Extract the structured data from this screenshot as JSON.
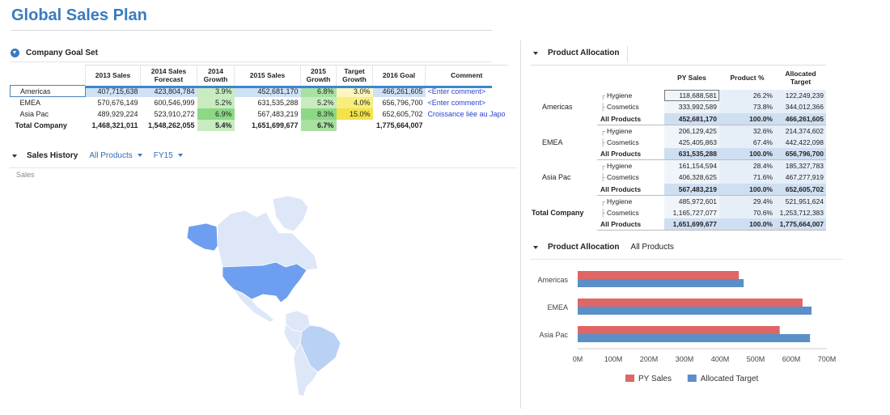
{
  "title": "Global Sales Plan",
  "goal_section": {
    "title": "Company Goal Set"
  },
  "goal_table": {
    "headers": [
      "",
      "2013 Sales",
      "2014 Sales Forecast",
      "2014 Growth",
      "2015 Sales",
      "2015 Growth",
      "Target Growth",
      "2016 Goal",
      "Comment"
    ],
    "rows": [
      {
        "label": "Americas",
        "s2013": "407,715,638",
        "f2014": "423,804,784",
        "g2014": "3.9%",
        "s2015": "452,681,170",
        "g2015": "6.8%",
        "tg": "3.0%",
        "goal2016": "466,261,605",
        "comment": "<Enter comment>"
      },
      {
        "label": "EMEA",
        "s2013": "570,676,149",
        "f2014": "600,546,999",
        "g2014": "5.2%",
        "s2015": "631,535,288",
        "g2015": "5.2%",
        "tg": "4.0%",
        "goal2016": "656,796,700",
        "comment": "<Enter comment>"
      },
      {
        "label": "Asia Pac",
        "s2013": "489,929,224",
        "f2014": "523,910,272",
        "g2014": "6.9%",
        "s2015": "567,483,219",
        "g2015": "8.3%",
        "tg": "15.0%",
        "goal2016": "652,605,702",
        "comment": "Croissance liée au Japo"
      },
      {
        "label": "Total Company",
        "s2013": "1,468,321,011",
        "f2014": "1,548,262,055",
        "g2014": "5.4%",
        "s2015": "1,651,699,677",
        "g2015": "6.7%",
        "tg": "",
        "goal2016": "1,775,664,007",
        "comment": ""
      }
    ]
  },
  "sales_history": {
    "title": "Sales History",
    "filter_product": "All Products",
    "filter_period": "FY15",
    "measure_label": "Sales"
  },
  "map": {
    "colors": {
      "dark": "#6d9eef",
      "medium": "#b9d1f5",
      "light": "#dde7f7"
    }
  },
  "alloc_section": {
    "title": "Product Allocation"
  },
  "alloc_table": {
    "headers": [
      "",
      "",
      "PY Sales",
      "Product %",
      "Allocated Target"
    ],
    "groups": [
      {
        "region": "Americas",
        "rows": [
          {
            "product": "Hygiene",
            "py": "118,688,581",
            "pct": "26.2%",
            "target": "122,249,239"
          },
          {
            "product": "Cosmetics",
            "py": "333,992,589",
            "pct": "73.8%",
            "target": "344,012,366"
          },
          {
            "product": "All Products",
            "py": "452,681,170",
            "pct": "100.0%",
            "target": "466,261,605"
          }
        ]
      },
      {
        "region": "EMEA",
        "rows": [
          {
            "product": "Hygiene",
            "py": "206,129,425",
            "pct": "32.6%",
            "target": "214,374,602"
          },
          {
            "product": "Cosmetics",
            "py": "425,405,863",
            "pct": "67.4%",
            "target": "442,422,098"
          },
          {
            "product": "All Products",
            "py": "631,535,288",
            "pct": "100.0%",
            "target": "656,796,700"
          }
        ]
      },
      {
        "region": "Asia Pac",
        "rows": [
          {
            "product": "Hygiene",
            "py": "161,154,594",
            "pct": "28.4%",
            "target": "185,327,783"
          },
          {
            "product": "Cosmetics",
            "py": "406,328,625",
            "pct": "71.6%",
            "target": "467,277,919"
          },
          {
            "product": "All Products",
            "py": "567,483,219",
            "pct": "100.0%",
            "target": "652,605,702"
          }
        ]
      },
      {
        "region": "Total Company",
        "rows": [
          {
            "product": "Hygiene",
            "py": "485,972,601",
            "pct": "29.4%",
            "target": "521,951,624"
          },
          {
            "product": "Cosmetics",
            "py": "1,165,727,077",
            "pct": "70.6%",
            "target": "1,253,712,383"
          },
          {
            "product": "All Products",
            "py": "1,651,699,677",
            "pct": "100.0%",
            "target": "1,775,664,007"
          }
        ]
      }
    ]
  },
  "chart_section": {
    "title": "Product Allocation",
    "subtitle": "All Products"
  },
  "chart_data": {
    "type": "bar",
    "orientation": "horizontal",
    "categories": [
      "Americas",
      "EMEA",
      "Asia Pac"
    ],
    "series": [
      {
        "name": "PY Sales",
        "color": "#e06666",
        "values": [
          452681170,
          631535288,
          567483219
        ]
      },
      {
        "name": "Allocated Target",
        "color": "#5b8fc7",
        "values": [
          466261605,
          656796700,
          652605702
        ]
      }
    ],
    "xlim": [
      0,
      700000000
    ],
    "ticks": [
      0,
      100000000,
      200000000,
      300000000,
      400000000,
      500000000,
      600000000,
      700000000
    ],
    "tick_labels": [
      "0M",
      "100M",
      "200M",
      "300M",
      "400M",
      "500M",
      "600M",
      "700M"
    ],
    "legend": "bottom"
  }
}
